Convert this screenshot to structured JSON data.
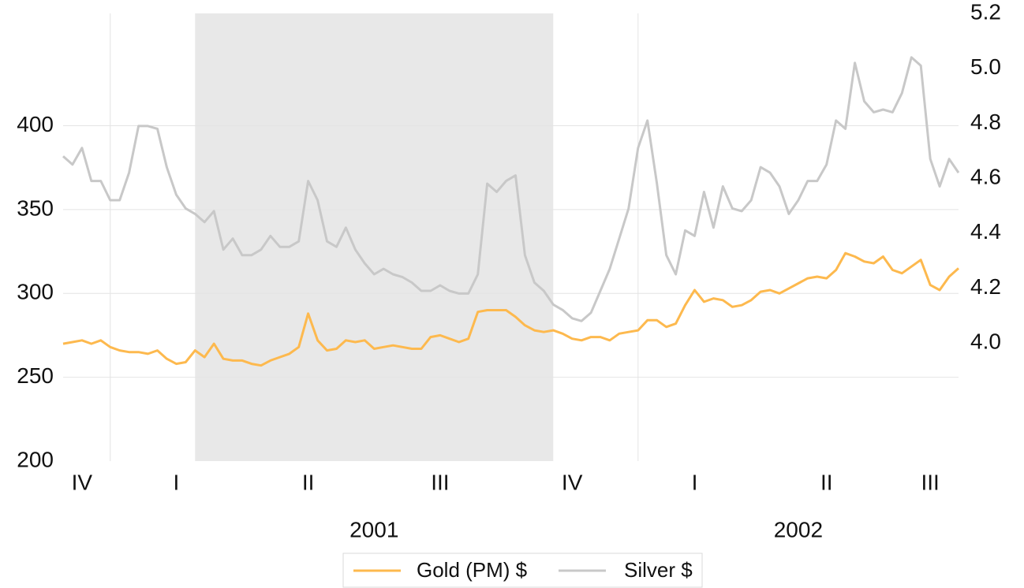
{
  "chart_data": {
    "type": "line",
    "categories": [
      null,
      null,
      "IV",
      null,
      null,
      null,
      null,
      null,
      null,
      null,
      null,
      null,
      "I",
      null,
      null,
      null,
      null,
      null,
      null,
      null,
      null,
      null,
      null,
      null,
      null,
      null,
      "II",
      null,
      null,
      null,
      null,
      null,
      null,
      null,
      null,
      null,
      null,
      null,
      null,
      null,
      "III",
      null,
      null,
      null,
      null,
      null,
      null,
      null,
      null,
      null,
      null,
      null,
      null,
      null,
      "IV",
      null,
      null,
      null,
      null,
      null,
      null,
      null,
      null,
      null,
      null,
      null,
      null,
      "I",
      null,
      null,
      null,
      null,
      null,
      null,
      null,
      null,
      null,
      null,
      null,
      null,
      null,
      "II",
      null,
      null,
      null,
      null,
      null,
      null,
      null,
      null,
      null,
      null,
      "III",
      null,
      null,
      null
    ],
    "x_groups": [
      {
        "label": "2001",
        "start": 5,
        "end": 61
      },
      {
        "label": "2002",
        "start": 61,
        "end": 95
      }
    ],
    "shaded_range": [
      14,
      52
    ],
    "series": [
      {
        "name": "Gold (PM) $",
        "color": "#fdb94e",
        "axis": "y",
        "values": [
          270,
          271,
          272,
          270,
          272,
          268,
          266,
          265,
          265,
          264,
          266,
          261,
          258,
          259,
          266,
          262,
          270,
          261,
          260,
          260,
          258,
          257,
          260,
          262,
          264,
          268,
          288,
          272,
          266,
          267,
          272,
          271,
          272,
          267,
          268,
          269,
          268,
          267,
          267,
          274,
          275,
          273,
          271,
          273,
          289,
          290,
          290,
          290,
          286,
          281,
          278,
          277,
          278,
          276,
          273,
          272,
          274,
          274,
          272,
          276,
          277,
          278,
          284,
          284,
          280,
          282,
          293,
          302,
          295,
          297,
          296,
          292,
          293,
          296,
          301,
          302,
          300,
          303,
          306,
          309,
          310,
          309,
          314,
          324,
          322,
          319,
          318,
          322,
          314,
          312,
          316,
          320,
          305,
          302,
          310,
          315
        ]
      },
      {
        "name": "Silver $",
        "color": "#c8c8c8",
        "axis": "y2",
        "values": [
          4.68,
          4.65,
          4.71,
          4.59,
          4.59,
          4.52,
          4.52,
          4.62,
          4.79,
          4.79,
          4.78,
          4.64,
          4.54,
          4.49,
          4.47,
          4.44,
          4.48,
          4.34,
          4.38,
          4.32,
          4.32,
          4.34,
          4.39,
          4.35,
          4.35,
          4.37,
          4.59,
          4.52,
          4.37,
          4.35,
          4.42,
          4.34,
          4.29,
          4.25,
          4.27,
          4.25,
          4.24,
          4.22,
          4.19,
          4.19,
          4.21,
          4.19,
          4.18,
          4.18,
          4.25,
          4.58,
          4.55,
          4.59,
          4.61,
          4.32,
          4.22,
          4.19,
          4.14,
          4.12,
          4.09,
          4.08,
          4.11,
          4.19,
          4.27,
          4.38,
          4.49,
          4.71,
          4.81,
          4.58,
          4.32,
          4.25,
          4.41,
          4.39,
          4.55,
          4.42,
          4.57,
          4.49,
          4.48,
          4.52,
          4.64,
          4.62,
          4.57,
          4.47,
          4.52,
          4.59,
          4.59,
          4.65,
          4.81,
          4.78,
          5.02,
          4.88,
          4.84,
          4.85,
          4.84,
          4.91,
          5.04,
          5.01,
          4.67,
          4.57,
          4.67,
          4.62
        ]
      }
    ],
    "ylim": [
      200,
      467
    ],
    "yticks": [
      200,
      250,
      300,
      350,
      400
    ],
    "y2lim": [
      3.57,
      5.2
    ],
    "y2ticks": [
      {
        "value": 4,
        "label": "4.0"
      },
      4.2,
      4.4,
      4.6,
      4.8,
      {
        "value": 5,
        "label": "5.0"
      },
      5.2
    ],
    "grid": true,
    "legend": "bottom"
  }
}
